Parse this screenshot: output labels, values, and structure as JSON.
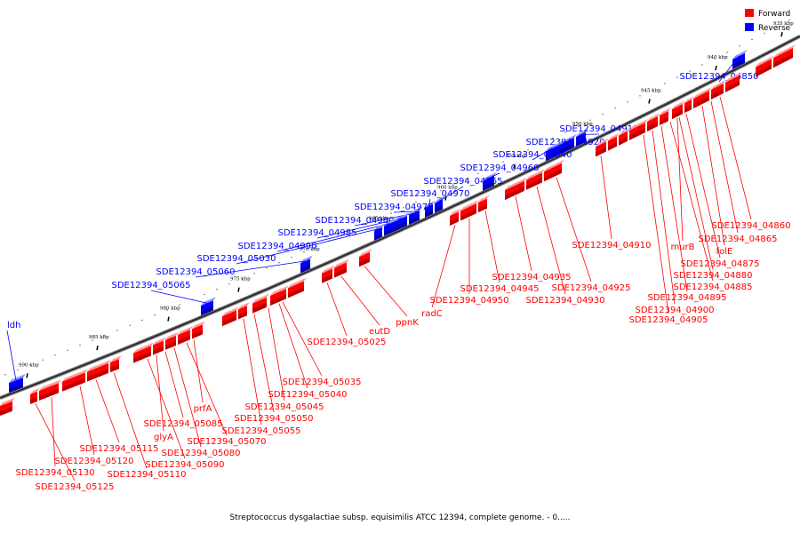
{
  "legend": {
    "forward_label": "Forward",
    "reverse_label": "Reverse",
    "forward_color": "#ff0000",
    "reverse_color": "#0000ff"
  },
  "caption": "Streptococcus dysgalactiae subsp. equisimilis ATCC 12394, complete genome. - 0.....",
  "scale_ticks": [
    "935 kbp",
    "940 kbp",
    "945 kbp",
    "950 kbp",
    "955 kbp",
    "960 kbp",
    "965 kbp",
    "970 kbp",
    "975 kbp",
    "980 kbp",
    "985 kbp",
    "990 kbp"
  ],
  "reverse_genes": [
    "SDE12394_04850",
    "SDE12394_04915",
    "SDE12394_04920",
    "SDE12394_04940",
    "SDE12394_04960",
    "SDE12394_04965",
    "SDE12394_04970",
    "SDE12394_04975",
    "SDE12394_04980",
    "SDE12394_04985",
    "SDE12394_04990",
    "SDE12394_05030",
    "SDE12394_05060",
    "SDE12394_05065",
    "ldh"
  ],
  "forward_genes": [
    "SDE12394_04860",
    "SDE12394_04865",
    "folE",
    "murB",
    "SDE12394_04875",
    "SDE12394_04880",
    "SDE12394_04885",
    "SDE12394_04895",
    "SDE12394_04900",
    "SDE12394_04905",
    "SDE12394_04910",
    "SDE12394_04925",
    "SDE12394_04930",
    "SDE12394_04935",
    "SDE12394_04945",
    "SDE12394_04950",
    "radC",
    "ppnK",
    "eutD",
    "SDE12394_05025",
    "SDE12394_05035",
    "SDE12394_05040",
    "SDE12394_05045",
    "SDE12394_05050",
    "SDE12394_05055",
    "prfA",
    "SDE12394_05070",
    "SDE12394_05080",
    "SDE12394_05085",
    "glyA",
    "SDE12394_05090",
    "SDE12394_05110",
    "SDE12394_05115",
    "SDE12394_05120",
    "SDE12394_05130",
    "SDE12394_05125"
  ]
}
